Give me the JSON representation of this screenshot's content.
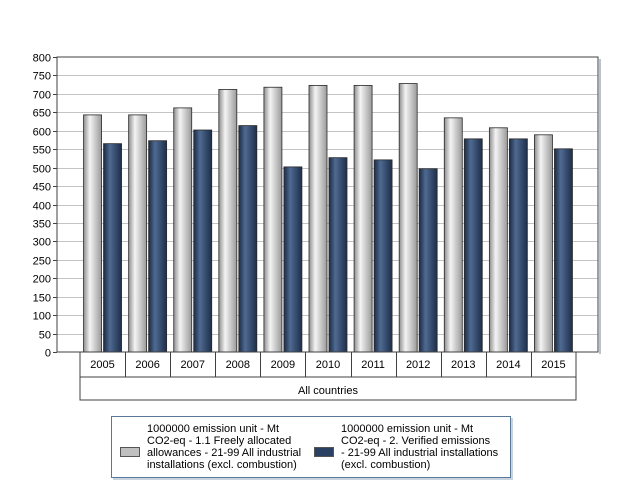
{
  "chart_data": {
    "type": "bar",
    "categories": [
      "2005",
      "2006",
      "2007",
      "2008",
      "2009",
      "2010",
      "2011",
      "2012",
      "2013",
      "2014",
      "2015"
    ],
    "group_label": "All countries",
    "ylim": [
      0,
      800
    ],
    "yticks": [
      0,
      50,
      100,
      150,
      200,
      250,
      300,
      350,
      400,
      450,
      500,
      550,
      600,
      650,
      700,
      750,
      800
    ],
    "grid": true,
    "legend_position": "bottom",
    "series": [
      {
        "name": "1000000 emission unit - Mt CO2-eq - 1.1 Freely allocated allowances - 21-99 All industrial installations (excl. combustion)",
        "legend_lines": "1000000 emission unit - Mt\nCO2-eq - 1.1 Freely allocated\nallowances - 21-99 All industrial\ninstallations (excl. combustion)",
        "color": "#c0c0c0",
        "values": [
          643,
          643,
          662,
          712,
          718,
          723,
          723,
          728,
          635,
          608,
          589
        ]
      },
      {
        "name": "1000000 emission unit - Mt CO2-eq - 2. Verified emissions - 21-99 All industrial installations (excl. combustion)",
        "legend_lines": "1000000 emission unit - Mt\nCO2-eq - 2. Verified emissions\n- 21-99 All industrial installations\n(excl. combustion)",
        "color": "#2b4164",
        "values": [
          565,
          573,
          602,
          614,
          502,
          527,
          521,
          497,
          578,
          578,
          551
        ]
      }
    ]
  }
}
